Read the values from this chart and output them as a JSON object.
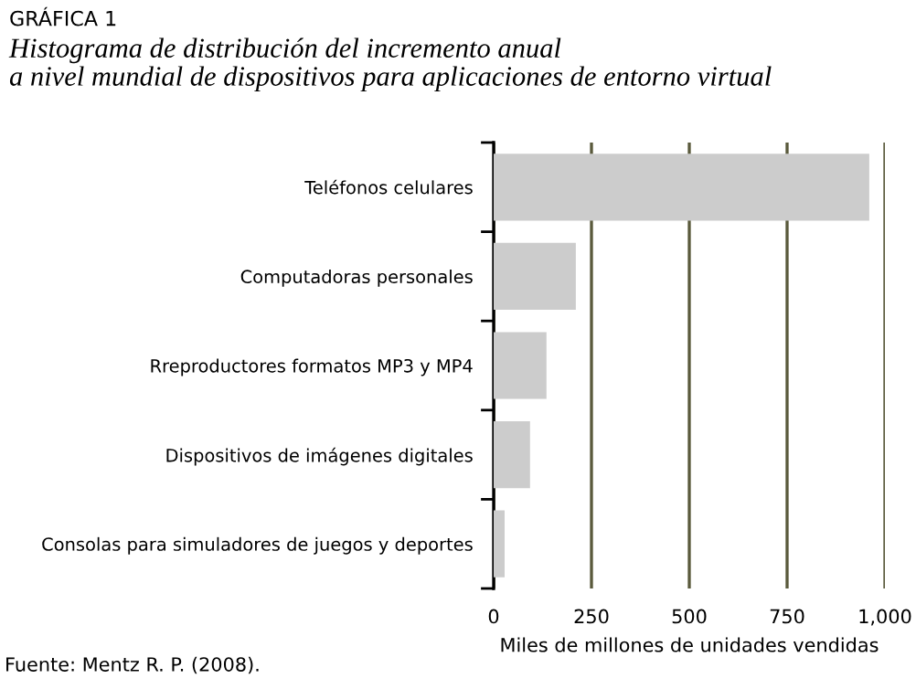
{
  "chart_data": {
    "type": "bar",
    "orientation": "horizontal",
    "title": "GRÁFICA 1",
    "subtitle": "Histograma de distribución del incremento anual\na nivel mundial de dispositivos para aplicaciones de entorno virtual",
    "categories": [
      "Teléfonos celulares",
      "Computadoras personales",
      "Rreproductores formatos MP3 y MP4",
      "Dispositivos de imágenes digitales",
      "Consolas para simuladores de juegos y deportes"
    ],
    "values": [
      960,
      210,
      135,
      93,
      28
    ],
    "color": "#cccccc",
    "xlim": [
      0,
      1000
    ],
    "xticks": [
      0,
      250,
      500,
      750,
      {
        "value": 1000,
        "label": "1,000"
      }
    ],
    "grid": "x",
    "xlabel": "Miles de millones de unidades vendidas",
    "annotations": [
      "Fuente: Mentz R. P. (2008)."
    ]
  }
}
